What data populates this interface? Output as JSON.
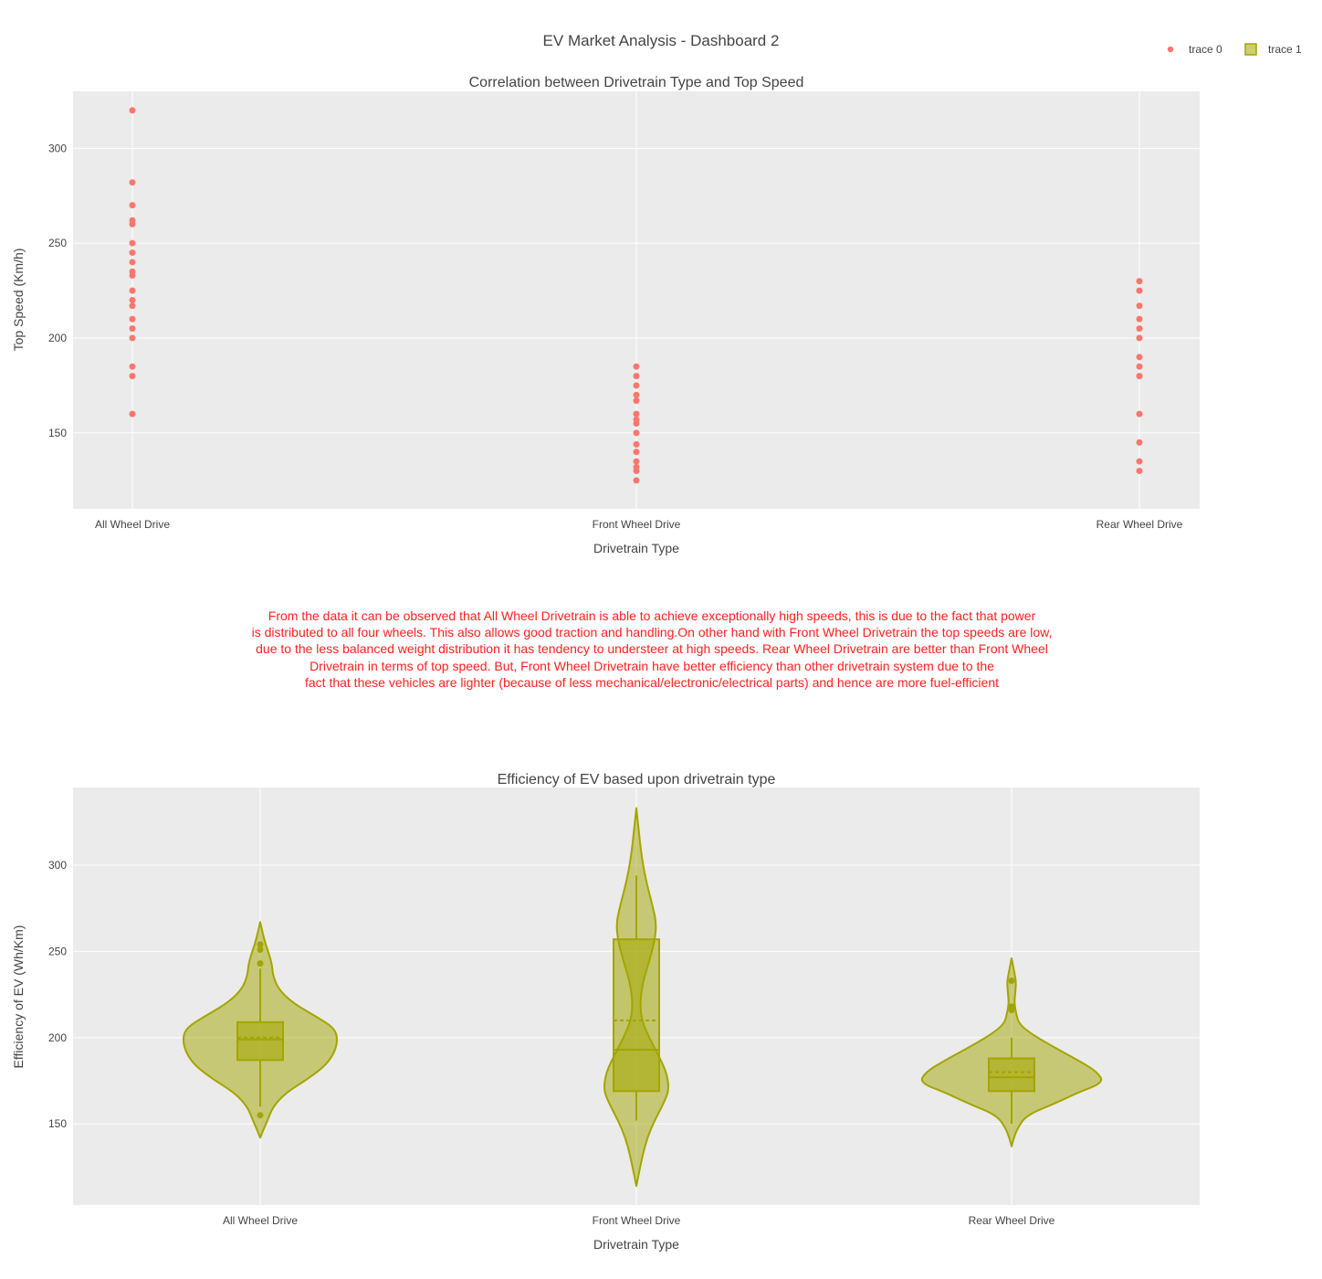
{
  "dashboard": {
    "title": "EV Market Analysis - Dashboard 2",
    "legend": [
      {
        "name": "trace 0",
        "color": "#f8766d",
        "symbol": "dot"
      },
      {
        "name": "trace 1",
        "color": "#a3a500",
        "symbol": "box"
      }
    ],
    "observation_lines": [
      "From the data it can be observed that All Wheel Drivetrain is able to achieve exceptionally high speeds, this is due to the fact that power",
      "is distributed to all four wheels. This also allows good traction and handling.On other hand with Front Wheel Drivetrain the top speeds are low,",
      "due to the less balanced weight distribution it has tendency to understeer at high speeds. Rear Wheel Drivetrain are better than Front Wheel",
      "Drivetrain in terms of top speed. But, Front Wheel Drivetrain have better efficiency than other drivetrain system due to the",
      "fact that these vehicles are lighter (because of less mechanical/electronic/electrical parts) and hence are more fuel-efficient"
    ]
  },
  "chart_data": [
    {
      "type": "scatter",
      "title": "Correlation between Drivetrain Type and Top Speed",
      "xlabel": "Drivetrain Type",
      "ylabel": "Top Speed (Km/h)",
      "categories": [
        "All Wheel Drive",
        "Front Wheel Drive",
        "Rear Wheel Drive"
      ],
      "ylim": [
        110,
        330
      ],
      "yticks": [
        150,
        200,
        250,
        300
      ],
      "grid": true,
      "series": [
        {
          "name": "trace 0",
          "color": "#f8766d",
          "points": [
            {
              "x": "All Wheel Drive",
              "y": [
                320,
                282,
                270,
                262,
                260,
                250,
                245,
                240,
                235,
                233,
                225,
                220,
                217,
                210,
                205,
                200,
                185,
                180,
                160
              ]
            },
            {
              "x": "Front Wheel Drive",
              "y": [
                185,
                180,
                175,
                170,
                167,
                160,
                157,
                155,
                150,
                144,
                140,
                135,
                132,
                130,
                125
              ]
            },
            {
              "x": "Rear Wheel Drive",
              "y": [
                230,
                225,
                217,
                210,
                205,
                200,
                190,
                185,
                180,
                160,
                145,
                135,
                130
              ]
            }
          ]
        }
      ]
    },
    {
      "type": "violin",
      "title": "Efficiency of EV based upon drivetrain type",
      "xlabel": "Drivetrain Type",
      "ylabel": "Efficiency of EV (Wh/Km)",
      "categories": [
        "All Wheel Drive",
        "Front Wheel Drive",
        "Rear Wheel Drive"
      ],
      "ylim": [
        103,
        345
      ],
      "yticks": [
        150,
        200,
        250,
        300
      ],
      "grid": true,
      "series": [
        {
          "name": "trace 1",
          "color": "#a3a500",
          "groups": [
            {
              "category": "All Wheel Drive",
              "min": 160,
              "q1": 187,
              "median": 199,
              "mean": 200,
              "q3": 209,
              "max": 240,
              "outliers": [
                243,
                251,
                254,
                155
              ],
              "density": [
                [
                  142,
                  0
                ],
                [
                  146,
                  3
                ],
                [
                  152,
                  8
                ],
                [
                  160,
                  14
                ],
                [
                  168,
                  28
                ],
                [
                  176,
                  52
                ],
                [
                  184,
                  72
                ],
                [
                  192,
                  82
                ],
                [
                  200,
                  85
                ],
                [
                  206,
                  80
                ],
                [
                  212,
                  62
                ],
                [
                  220,
                  36
                ],
                [
                  228,
                  20
                ],
                [
                  236,
                  14
                ],
                [
                  242,
                  13
                ],
                [
                  248,
                  10
                ],
                [
                  254,
                  6
                ],
                [
                  260,
                  3
                ],
                [
                  267,
                  0
                ]
              ]
            },
            {
              "category": "Front Wheel Drive",
              "min": 152,
              "q1": 169,
              "median": 193,
              "mean": 210,
              "q3": 257,
              "max": 294,
              "outliers": [],
              "density": [
                [
                  114,
                  0
                ],
                [
                  122,
                  3
                ],
                [
                  132,
                  7
                ],
                [
                  142,
                  12
                ],
                [
                  152,
                  20
                ],
                [
                  162,
                  30
                ],
                [
                  170,
                  36
                ],
                [
                  180,
                  33
                ],
                [
                  190,
                  24
                ],
                [
                  200,
                  14
                ],
                [
                  210,
                  6
                ],
                [
                  220,
                  4
                ],
                [
                  232,
                  7
                ],
                [
                  244,
                  14
                ],
                [
                  256,
                  20
                ],
                [
                  266,
                  22
                ],
                [
                  276,
                  18
                ],
                [
                  290,
                  11
                ],
                [
                  304,
                  6
                ],
                [
                  318,
                  3
                ],
                [
                  333,
                  0
                ]
              ]
            },
            {
              "category": "Rear Wheel Drive",
              "min": 150,
              "q1": 169,
              "median": 177,
              "mean": 180,
              "q3": 188,
              "max": 200,
              "outliers": [
                218,
                216,
                233
              ],
              "density": [
                [
                  137,
                  0
                ],
                [
                  141,
                  2
                ],
                [
                  147,
                  6
                ],
                [
                  155,
                  16
                ],
                [
                  162,
                  48
                ],
                [
                  168,
                  72
                ],
                [
                  174,
                  101
                ],
                [
                  180,
                  94
                ],
                [
                  186,
                  76
                ],
                [
                  194,
                  48
                ],
                [
                  202,
                  22
                ],
                [
                  208,
                  8
                ],
                [
                  214,
                  5
                ],
                [
                  220,
                  3
                ],
                [
                  226,
                  4
                ],
                [
                  232,
                  5
                ],
                [
                  238,
                  3
                ],
                [
                  246,
                  0
                ]
              ]
            }
          ]
        }
      ]
    }
  ]
}
